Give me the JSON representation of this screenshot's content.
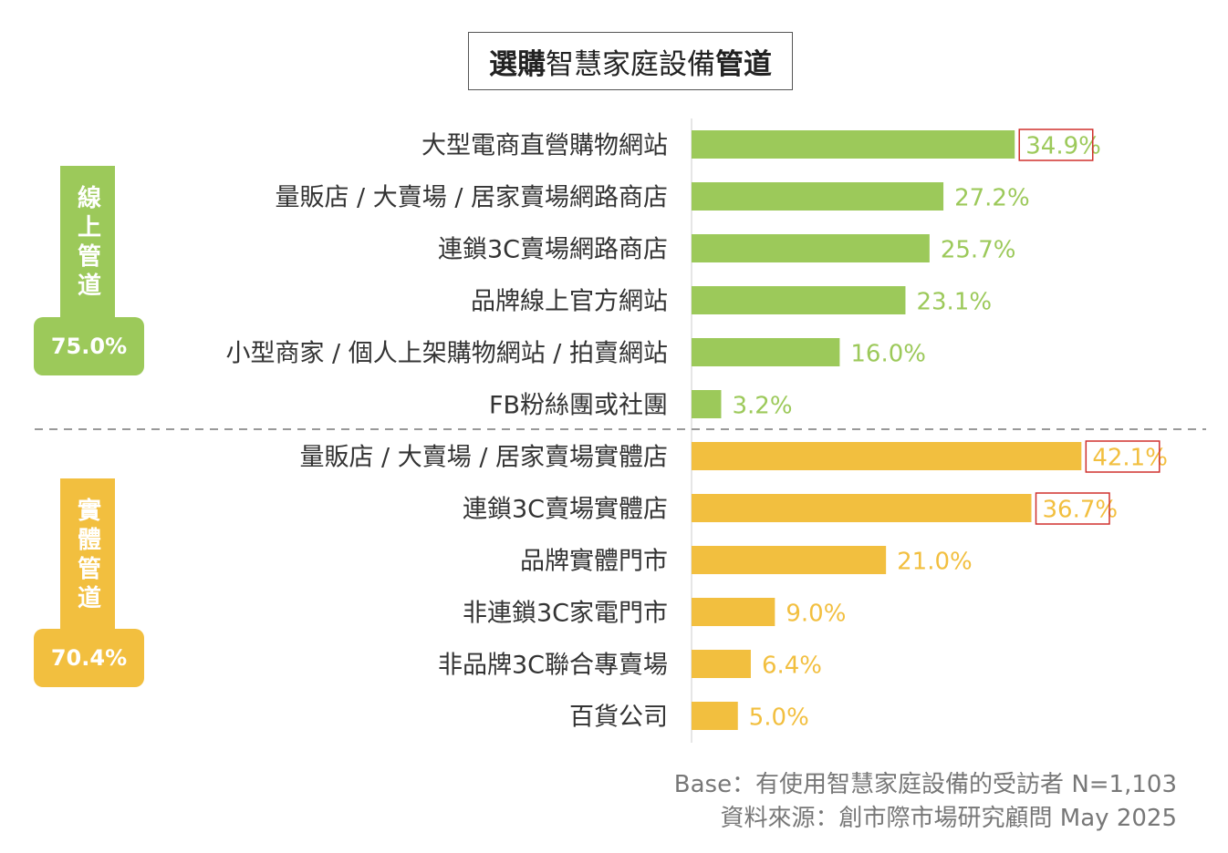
{
  "title": {
    "bold_part_1": "選購",
    "normal_part": "智慧家庭設備",
    "bold_part_2": "管道"
  },
  "colors": {
    "online": "#9cc95a",
    "offline": "#f2bf3f",
    "highlight_border": "#d0312d"
  },
  "groups": {
    "online": {
      "label": "線上管道",
      "total": "75.0%"
    },
    "offline": {
      "label": "實體管道",
      "total": "70.4%"
    }
  },
  "chart_data": {
    "type": "bar",
    "orientation": "horizontal",
    "categories": [
      "大型電商直營購物網站",
      "量販店 / 大賣場 / 居家賣場網路商店",
      "連鎖3C賣場網路商店",
      "品牌線上官方網站",
      "小型商家 / 個人上架購物網站 / 拍賣網站",
      "FB粉絲團或社團",
      "量販店 / 大賣場 / 居家賣場實體店",
      "連鎖3C賣場實體店",
      "品牌實體門市",
      "非連鎖3C家電門市",
      "非品牌3C聯合專賣場",
      "百貨公司"
    ],
    "values": [
      34.9,
      27.2,
      25.7,
      23.1,
      16.0,
      3.2,
      42.1,
      36.7,
      21.0,
      9.0,
      6.4,
      5.0
    ],
    "value_labels": [
      "34.9%",
      "27.2%",
      "25.7%",
      "23.1%",
      "16.0%",
      "3.2%",
      "42.1%",
      "36.7%",
      "21.0%",
      "9.0%",
      "6.4%",
      "5.0%"
    ],
    "group": [
      "online",
      "online",
      "online",
      "online",
      "online",
      "online",
      "offline",
      "offline",
      "offline",
      "offline",
      "offline",
      "offline"
    ],
    "highlighted": [
      true,
      false,
      false,
      false,
      false,
      false,
      true,
      true,
      false,
      false,
      false,
      false
    ],
    "unit": "%",
    "grid": false,
    "legend": "none"
  },
  "footnotes": {
    "base": "Base：有使用智慧家庭設備的受訪者 N=1,103",
    "source": "資料來源：創市際市場研究顧問 May 2025"
  }
}
